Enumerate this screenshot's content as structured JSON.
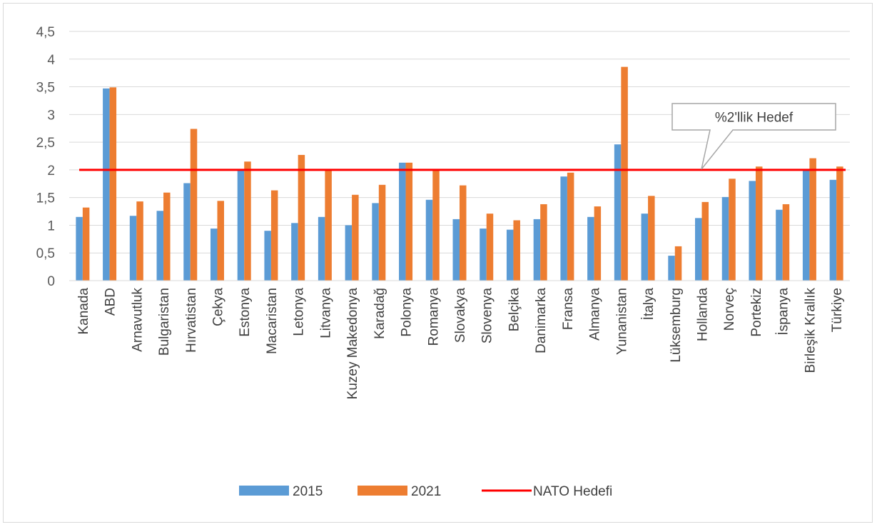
{
  "chart_data": {
    "type": "bar",
    "categories": [
      "Kanada",
      "ABD",
      "Arnavutluk",
      "Bulgaristan",
      "Hırvatistan",
      "Çekya",
      "Estonya",
      "Macaristan",
      "Letonya",
      "Litvanya",
      "Kuzey Makedonya",
      "Karadağ",
      "Polonya",
      "Romanya",
      "Slovakya",
      "Slovenya",
      "Belçika",
      "Danimarka",
      "Fransa",
      "Almanya",
      "Yunanistan",
      "İtalya",
      "Lüksemburg",
      "Hollanda",
      "Norveç",
      "Portekiz",
      "İspanya",
      "Birleşik Krallık",
      "Türkiye"
    ],
    "series": [
      {
        "name": "2015",
        "color": "#5b9bd5",
        "values": [
          1.15,
          3.47,
          1.17,
          1.26,
          1.76,
          0.94,
          2.0,
          0.9,
          1.04,
          1.15,
          1.0,
          1.4,
          2.13,
          1.46,
          1.11,
          0.94,
          0.92,
          1.11,
          1.88,
          1.15,
          2.46,
          1.21,
          0.45,
          1.13,
          1.51,
          1.8,
          1.28,
          2.0,
          1.82
        ]
      },
      {
        "name": "2021",
        "color": "#ed7d31",
        "values": [
          1.32,
          3.49,
          1.43,
          1.59,
          2.74,
          1.44,
          2.15,
          1.63,
          2.27,
          2.0,
          1.55,
          1.73,
          2.13,
          2.0,
          1.72,
          1.21,
          1.09,
          1.38,
          1.95,
          1.34,
          3.86,
          1.53,
          0.62,
          1.42,
          1.84,
          2.06,
          1.38,
          2.21,
          2.06
        ]
      }
    ],
    "reference_line": {
      "name": "NATO Hedefi",
      "value": 2,
      "color": "#ff0000"
    },
    "callout": "%2'llik Hedef",
    "ylim": [
      0,
      4.5
    ],
    "yticks": [
      "0",
      "0,5",
      "1",
      "1,5",
      "2",
      "2,5",
      "3",
      "3,5",
      "4",
      "4,5"
    ],
    "grid": true,
    "legend_position": "bottom"
  }
}
